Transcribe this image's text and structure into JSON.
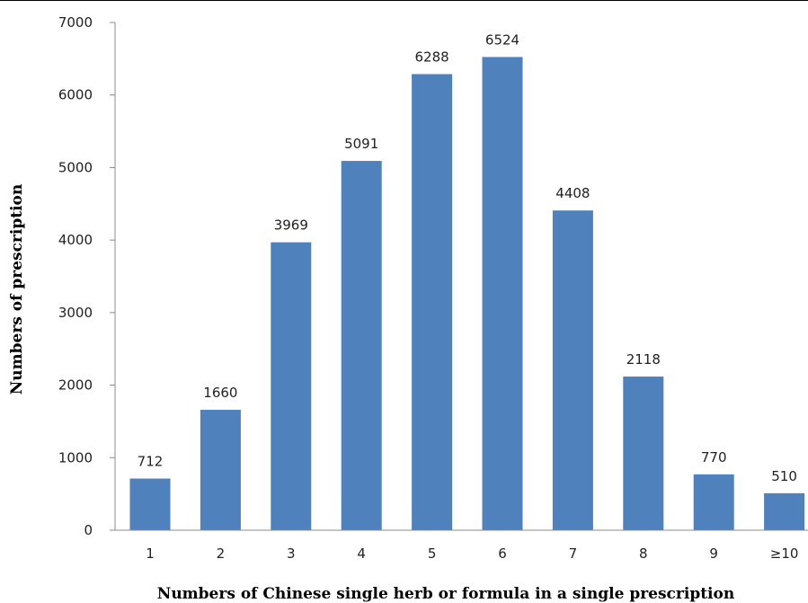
{
  "chart_data": {
    "type": "bar",
    "title": "",
    "xlabel": "Numbers of Chinese single herb or formula in a single prescription",
    "ylabel": "Numbers of prescription",
    "categories": [
      "1",
      "2",
      "3",
      "4",
      "5",
      "6",
      "7",
      "8",
      "9",
      "≥10"
    ],
    "values": [
      712,
      1660,
      3969,
      5091,
      6288,
      6524,
      4408,
      2118,
      770,
      510
    ],
    "ylim": [
      0,
      7000
    ],
    "yticks": [
      0,
      1000,
      2000,
      3000,
      4000,
      5000,
      6000,
      7000
    ],
    "grid": false,
    "legend": "none",
    "data_labels": true,
    "bar_color": "#4f81bd"
  }
}
